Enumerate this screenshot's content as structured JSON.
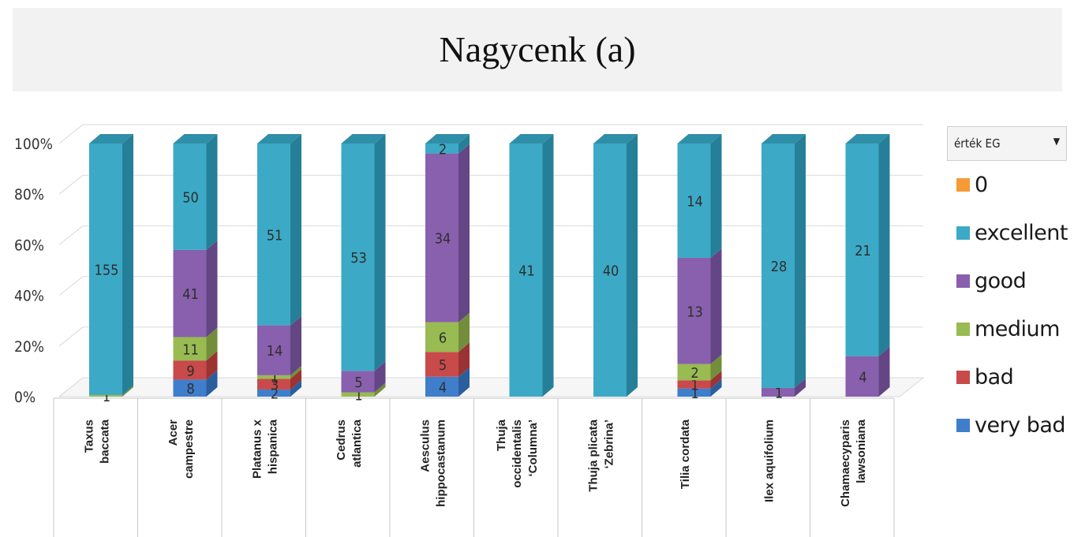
{
  "chart_data": {
    "type": "bar",
    "stacked": "percent",
    "title": "Nagycenk (a)",
    "xlabel": "",
    "ylabel": "",
    "ylim": [
      0,
      100
    ],
    "yticks": [
      "0%",
      "20%",
      "40%",
      "60%",
      "80%",
      "100%"
    ],
    "grid": true,
    "legend_position": "right",
    "categories": [
      [
        "Taxus",
        "baccata"
      ],
      [
        "Acer",
        "campestre"
      ],
      [
        "Platanus x",
        "hispanica"
      ],
      [
        "Cedrus",
        "atlantica"
      ],
      [
        "Aesculus",
        "hippocastanum"
      ],
      [
        "Thuja",
        "occidentalis",
        "‘Columna’"
      ],
      [
        "Thuja plicata",
        "‘Zebrina’"
      ],
      [
        "Tilia cordata"
      ],
      [
        "Ilex aquifolium"
      ],
      [
        "Chamaecyparis",
        "lawsoniana"
      ]
    ],
    "series": [
      {
        "name": "very bad",
        "color": "#3f7ecb",
        "side": "#2b5e9c",
        "top": "#5a94d8",
        "values": [
          0,
          8,
          2,
          0,
          4,
          0,
          0,
          1,
          0,
          0
        ]
      },
      {
        "name": "bad",
        "color": "#c94a4a",
        "side": "#9b3333",
        "top": "#d86666",
        "values": [
          0,
          9,
          3,
          0,
          5,
          0,
          0,
          1,
          0,
          0
        ]
      },
      {
        "name": "medium",
        "color": "#98bb52",
        "side": "#728e3a",
        "top": "#aacb66",
        "values": [
          1,
          11,
          1,
          1,
          6,
          0,
          0,
          2,
          0,
          0
        ]
      },
      {
        "name": "good",
        "color": "#8860ad",
        "side": "#634683",
        "top": "#9c78bf",
        "values": [
          0,
          41,
          14,
          5,
          34,
          0,
          0,
          13,
          1,
          4
        ]
      },
      {
        "name": "excellent",
        "color": "#3ca9c6",
        "side": "#267f98",
        "top": "#2f8ea8",
        "values": [
          155,
          50,
          51,
          53,
          2,
          41,
          40,
          14,
          28,
          21
        ]
      },
      {
        "name": "0",
        "color": "#f59a35",
        "side": "#c47524",
        "top": "#f7ae5c",
        "values": [
          0,
          0,
          0,
          0,
          0,
          0,
          0,
          0,
          0,
          0
        ]
      }
    ]
  },
  "legend": {
    "filter_label": "érték EG",
    "filter_arrow": "▼"
  }
}
